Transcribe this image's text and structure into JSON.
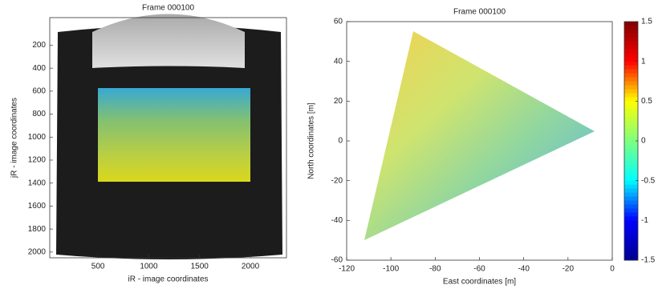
{
  "chart_data": [
    {
      "type": "image",
      "title": "Frame 000100",
      "xlabel": "iR - image coordinates",
      "ylabel": "jR - image coordinates",
      "xlim": [
        25,
        2355
      ],
      "ylim": [
        -40,
        2050
      ],
      "y_reversed": true,
      "xticks": [
        500,
        1000,
        1500,
        2000
      ],
      "yticks": [
        200,
        400,
        600,
        800,
        1000,
        1200,
        1400,
        1600,
        1800,
        2000
      ]
    },
    {
      "type": "scatter",
      "title": "Frame 000100",
      "xlabel": "East coordinates [m]",
      "ylabel": "North coordinates [m]",
      "xlim": [
        -120,
        0
      ],
      "ylim": [
        -60,
        60
      ],
      "xticks": [
        -120,
        -100,
        -80,
        -60,
        -40,
        -20,
        0
      ],
      "yticks": [
        -60,
        -40,
        -20,
        0,
        20,
        40,
        60
      ],
      "colorbar": {
        "colormap": "jet",
        "clim": [
          -1.5,
          1.5
        ],
        "ticks": [
          -1.5,
          -1,
          -0.5,
          0,
          0.5,
          1,
          1.5
        ]
      }
    }
  ]
}
